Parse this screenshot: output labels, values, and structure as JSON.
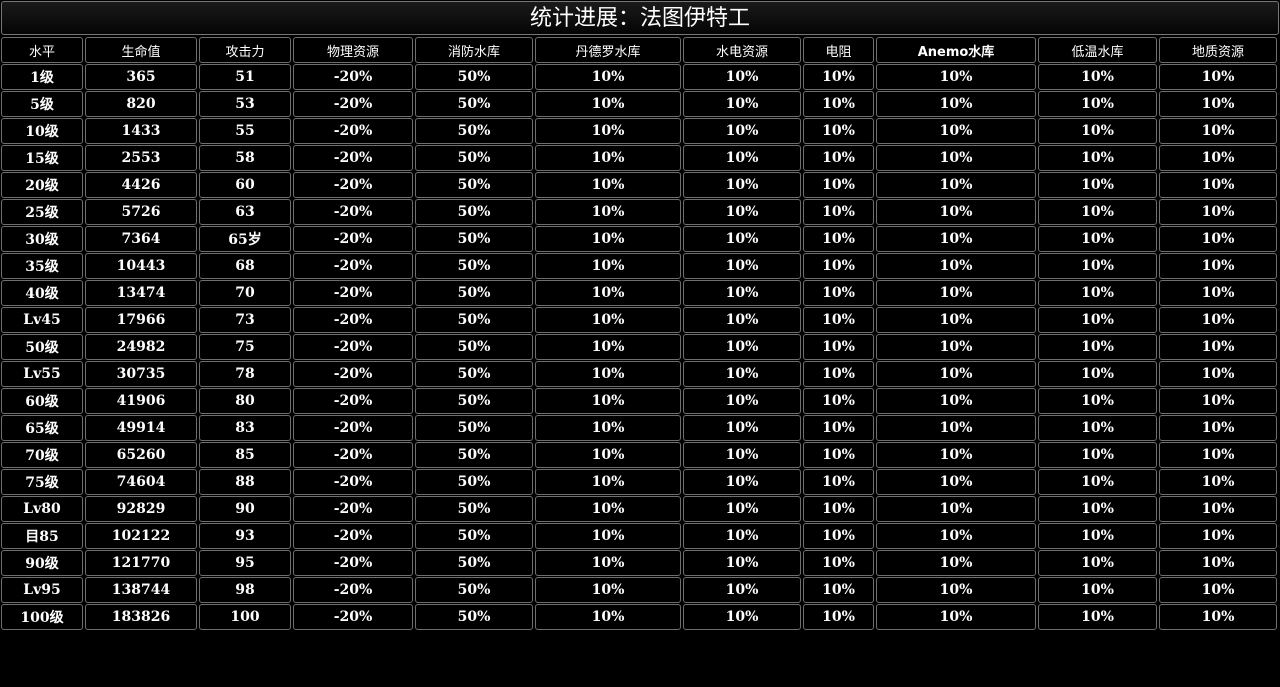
{
  "title": "统计进展：法图伊特工",
  "columns": [
    "水平",
    "生命值",
    "攻击力",
    "物理资源",
    "消防水库",
    "丹德罗水库",
    "水电资源",
    "电阻",
    "Anemo水库",
    "低温水库",
    "地质资源"
  ],
  "rows": [
    [
      "1级",
      "365",
      "51",
      "-20%",
      "50%",
      "10%",
      "10%",
      "10%",
      "10%",
      "10%",
      "10%"
    ],
    [
      "5级",
      "820",
      "53",
      "-20%",
      "50%",
      "10%",
      "10%",
      "10%",
      "10%",
      "10%",
      "10%"
    ],
    [
      "10级",
      "1433",
      "55",
      "-20%",
      "50%",
      "10%",
      "10%",
      "10%",
      "10%",
      "10%",
      "10%"
    ],
    [
      "15级",
      "2553",
      "58",
      "-20%",
      "50%",
      "10%",
      "10%",
      "10%",
      "10%",
      "10%",
      "10%"
    ],
    [
      "20级",
      "4426",
      "60",
      "-20%",
      "50%",
      "10%",
      "10%",
      "10%",
      "10%",
      "10%",
      "10%"
    ],
    [
      "25级",
      "5726",
      "63",
      "-20%",
      "50%",
      "10%",
      "10%",
      "10%",
      "10%",
      "10%",
      "10%"
    ],
    [
      "30级",
      "7364",
      "65岁",
      "-20%",
      "50%",
      "10%",
      "10%",
      "10%",
      "10%",
      "10%",
      "10%"
    ],
    [
      "35级",
      "10443",
      "68",
      "-20%",
      "50%",
      "10%",
      "10%",
      "10%",
      "10%",
      "10%",
      "10%"
    ],
    [
      "40级",
      "13474",
      "70",
      "-20%",
      "50%",
      "10%",
      "10%",
      "10%",
      "10%",
      "10%",
      "10%"
    ],
    [
      "Lv45",
      "17966",
      "73",
      "-20%",
      "50%",
      "10%",
      "10%",
      "10%",
      "10%",
      "10%",
      "10%"
    ],
    [
      "50级",
      "24982",
      "75",
      "-20%",
      "50%",
      "10%",
      "10%",
      "10%",
      "10%",
      "10%",
      "10%"
    ],
    [
      "Lv55",
      "30735",
      "78",
      "-20%",
      "50%",
      "10%",
      "10%",
      "10%",
      "10%",
      "10%",
      "10%"
    ],
    [
      "60级",
      "41906",
      "80",
      "-20%",
      "50%",
      "10%",
      "10%",
      "10%",
      "10%",
      "10%",
      "10%"
    ],
    [
      "65级",
      "49914",
      "83",
      "-20%",
      "50%",
      "10%",
      "10%",
      "10%",
      "10%",
      "10%",
      "10%"
    ],
    [
      "70级",
      "65260",
      "85",
      "-20%",
      "50%",
      "10%",
      "10%",
      "10%",
      "10%",
      "10%",
      "10%"
    ],
    [
      "75级",
      "74604",
      "88",
      "-20%",
      "50%",
      "10%",
      "10%",
      "10%",
      "10%",
      "10%",
      "10%"
    ],
    [
      "Lv80",
      "92829",
      "90",
      "-20%",
      "50%",
      "10%",
      "10%",
      "10%",
      "10%",
      "10%",
      "10%"
    ],
    [
      "目85",
      "102122",
      "93",
      "-20%",
      "50%",
      "10%",
      "10%",
      "10%",
      "10%",
      "10%",
      "10%"
    ],
    [
      "90级",
      "121770",
      "95",
      "-20%",
      "50%",
      "10%",
      "10%",
      "10%",
      "10%",
      "10%",
      "10%"
    ],
    [
      "Lv95",
      "138744",
      "98",
      "-20%",
      "50%",
      "10%",
      "10%",
      "10%",
      "10%",
      "10%",
      "10%"
    ],
    [
      "100级",
      "183826",
      "100",
      "-20%",
      "50%",
      "10%",
      "10%",
      "10%",
      "10%",
      "10%",
      "10%"
    ]
  ],
  "colors": {
    "background": "#000000",
    "border": "#6e6e6e",
    "text": "#ffffff"
  }
}
